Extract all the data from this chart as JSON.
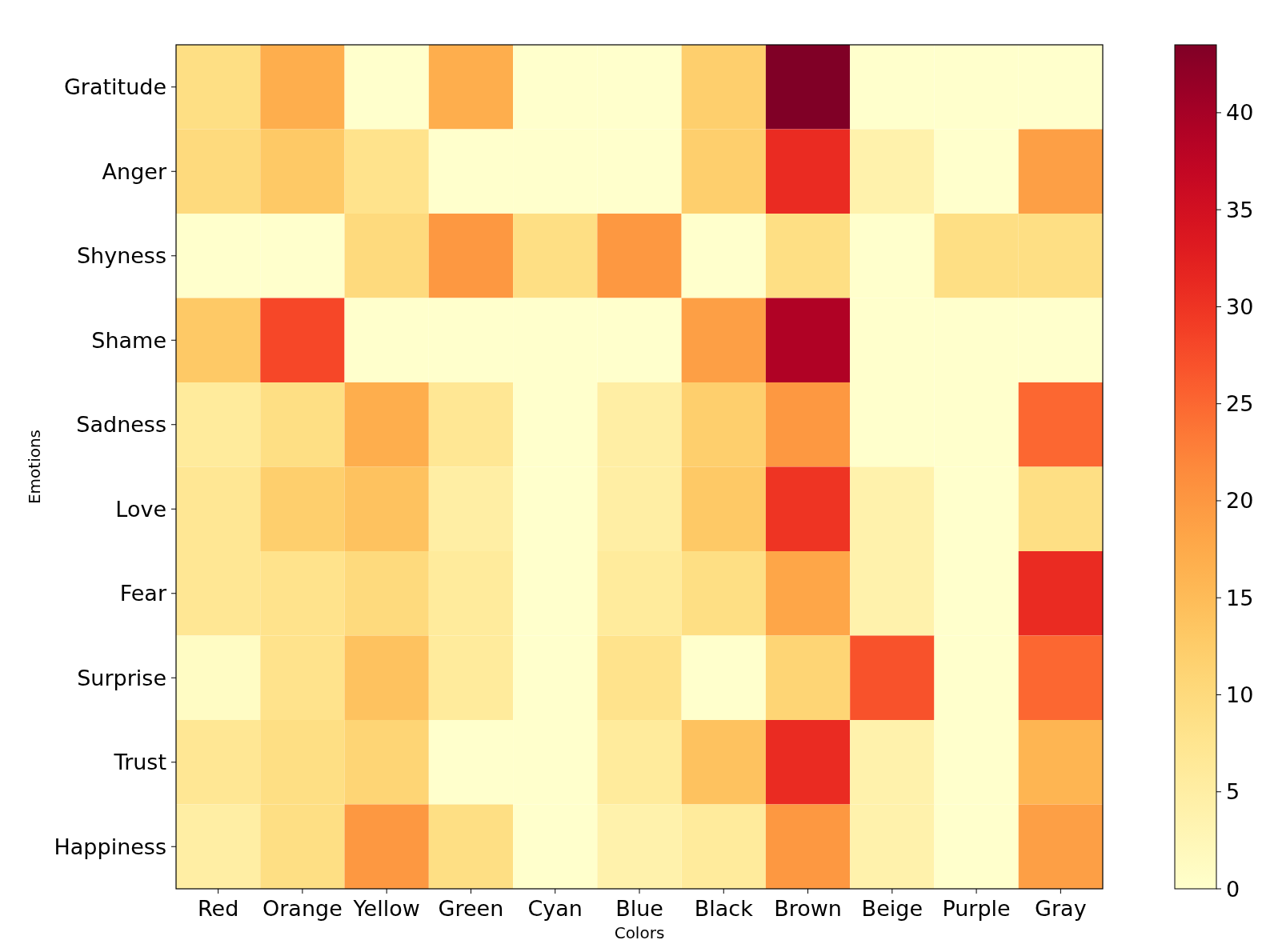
{
  "chart_data": {
    "type": "heatmap",
    "xlabel": "Colors",
    "ylabel": "Emotions",
    "categories": [
      "Red",
      "Orange",
      "Yellow",
      "Green",
      "Cyan",
      "Blue",
      "Black",
      "Brown",
      "Beige",
      "Purple",
      "Gray"
    ],
    "y_categories": [
      "Gratitude",
      "Anger",
      "Shyness",
      "Shame",
      "Sadness",
      "Love",
      "Fear",
      "Surprise",
      "Trust",
      "Happiness"
    ],
    "cells": [
      [
        9,
        17,
        0,
        17,
        0,
        0,
        12,
        43.5,
        0,
        0,
        0
      ],
      [
        10,
        13,
        8,
        0,
        0,
        0,
        12,
        31,
        4,
        0,
        19
      ],
      [
        0,
        0,
        10,
        20,
        9,
        20,
        0,
        9,
        0,
        9,
        9
      ],
      [
        13,
        28,
        0,
        0,
        0,
        0,
        19,
        39,
        0,
        0,
        0
      ],
      [
        6,
        9,
        17,
        7,
        0,
        5,
        12,
        20,
        0,
        0,
        25
      ],
      [
        7,
        12,
        14,
        5,
        0,
        5,
        13,
        30,
        4,
        0,
        9
      ],
      [
        7,
        8,
        10,
        6,
        0,
        6,
        9,
        18,
        4,
        0,
        31
      ],
      [
        1,
        8,
        14,
        6,
        0,
        8,
        0,
        11,
        27,
        0,
        25
      ],
      [
        7,
        9,
        11,
        0,
        0,
        6,
        14,
        31,
        4,
        0,
        16
      ],
      [
        5,
        9,
        20,
        9,
        0,
        4,
        6,
        20,
        4,
        0,
        19
      ]
    ],
    "clim": [
      0,
      43.5
    ],
    "cticks": [
      0,
      5,
      10,
      15,
      20,
      25,
      30,
      35,
      40
    ]
  }
}
